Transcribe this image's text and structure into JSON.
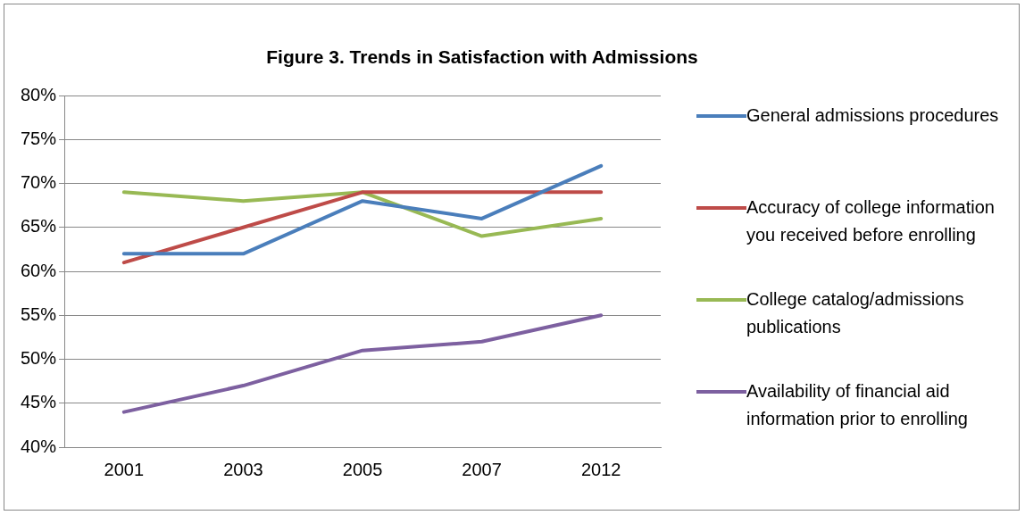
{
  "chart_data": {
    "type": "line",
    "title": "Figure 3. Trends in Satisfaction with Admissions",
    "categories": [
      "2001",
      "2003",
      "2005",
      "2007",
      "2012"
    ],
    "series": [
      {
        "name": "General admissions procedures",
        "color": "#4a7ebb",
        "values": [
          62,
          62,
          68,
          66,
          72
        ]
      },
      {
        "name": "Accuracy of college information you received before enrolling",
        "color": "#be4b48",
        "values": [
          61,
          65,
          69,
          69,
          69
        ]
      },
      {
        "name": "College catalog/admissions publications",
        "color": "#98b954",
        "values": [
          69,
          68,
          69,
          64,
          66
        ]
      },
      {
        "name": "Availability of financial aid information prior to enrolling",
        "color": "#7d60a0",
        "values": [
          44,
          47,
          51,
          52,
          55
        ]
      }
    ],
    "ylim": [
      40,
      80
    ],
    "yticks": [
      {
        "value": 40,
        "label": "40%"
      },
      {
        "value": 45,
        "label": "45%"
      },
      {
        "value": 50,
        "label": "50%"
      },
      {
        "value": 55,
        "label": "55%"
      },
      {
        "value": 60,
        "label": "60%"
      },
      {
        "value": 65,
        "label": "65%"
      },
      {
        "value": 70,
        "label": "70%"
      },
      {
        "value": 75,
        "label": "75%"
      },
      {
        "value": 80,
        "label": "80%"
      }
    ],
    "grid": "y",
    "legend": "right",
    "marker": "none",
    "line_style": "solid"
  }
}
